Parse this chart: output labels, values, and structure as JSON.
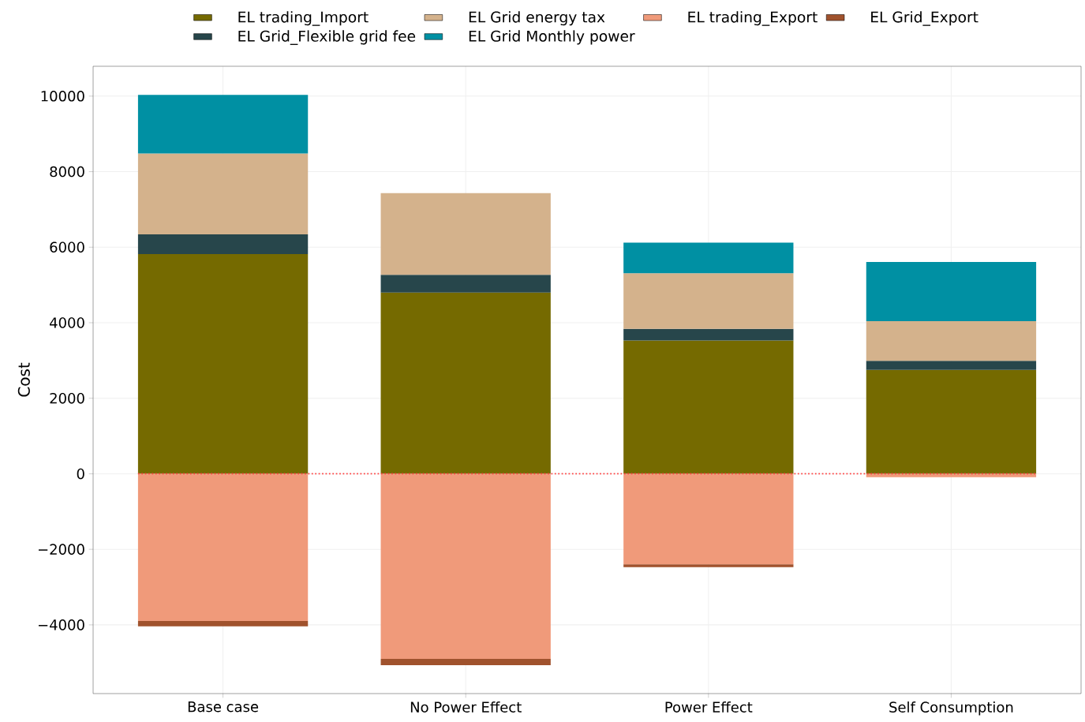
{
  "chart_data": {
    "type": "bar",
    "stacked": true,
    "ylabel": "Cost",
    "categories": [
      "Base case",
      "No Power Effect",
      "Power Effect",
      "Self Consumption"
    ],
    "series": [
      {
        "name": "EL trading_Import",
        "color": "#756a00",
        "values": [
          5820,
          4800,
          3530,
          2750
        ]
      },
      {
        "name": "EL Grid_Flexible grid fee",
        "color": "#27464b",
        "values": [
          520,
          470,
          310,
          240
        ]
      },
      {
        "name": "EL Grid energy tax",
        "color": "#d4b28c",
        "values": [
          2140,
          2160,
          1470,
          1050
        ]
      },
      {
        "name": "EL Grid Monthly power",
        "color": "#0090a3",
        "values": [
          1550,
          0,
          810,
          1570
        ]
      },
      {
        "name": "EL trading_Export",
        "color": "#f09a7a",
        "values": [
          -3900,
          -4900,
          -2400,
          -90
        ]
      },
      {
        "name": "EL Grid_Export",
        "color": "#a0522d",
        "values": [
          -140,
          -170,
          -70,
          0
        ]
      }
    ],
    "ylim": [
      -5820,
      10790
    ],
    "yticks": [
      {
        "value": -4000,
        "label": "−4000"
      },
      {
        "value": -2000,
        "label": "−2000"
      },
      0,
      2000,
      4000,
      6000,
      8000,
      10000
    ],
    "ref_lines": [
      {
        "axis": "y",
        "value": 0,
        "color": "#ff4040",
        "line_style": "dotted"
      }
    ],
    "grid": true,
    "legend": "top"
  }
}
